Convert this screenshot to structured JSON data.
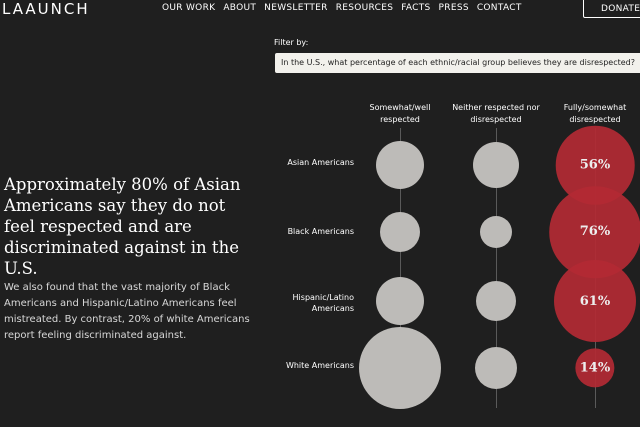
{
  "header": {
    "logo": "LAAUNCH",
    "nav": [
      "OUR WORK",
      "ABOUT",
      "NEWSLETTER",
      "RESOURCES",
      "FACTS",
      "PRESS",
      "CONTACT"
    ],
    "donate_label": "DONATE"
  },
  "filter": {
    "label": "Filter by:",
    "selected": "In the U.S., what percentage of each ethnic/racial group believes they are disrespected?"
  },
  "story": {
    "headline": "Approximately 80% of Asian Americans say they do not feel respected and are discriminated against in the U.S.",
    "body": "We also found that the vast majority of Black Americans and Hispanic/Latino Americans feel mistreated. By contrast, 20% of white Americans report feeling discriminated against."
  },
  "colors": {
    "gray_bubble": "#bdbbb8",
    "red_bubble": "#b32a34",
    "background": "#1f1f1f"
  },
  "chart_data": {
    "type": "bubble",
    "columns": [
      "Somewhat/well respected",
      "Neither respected nor disrespected",
      "Fully/somewhat disrespected"
    ],
    "rows": [
      {
        "group": "Asian Americans",
        "disrespected_label": "56%",
        "disrespected": 56
      },
      {
        "group": "Black Americans",
        "disrespected_label": "76%",
        "disrespected": 76
      },
      {
        "group": "Hispanic/Latino Americans",
        "disrespected_label": "61%",
        "disrespected": 61
      },
      {
        "group": "White Americans",
        "disrespected_label": "14%",
        "disrespected": 14
      }
    ]
  }
}
